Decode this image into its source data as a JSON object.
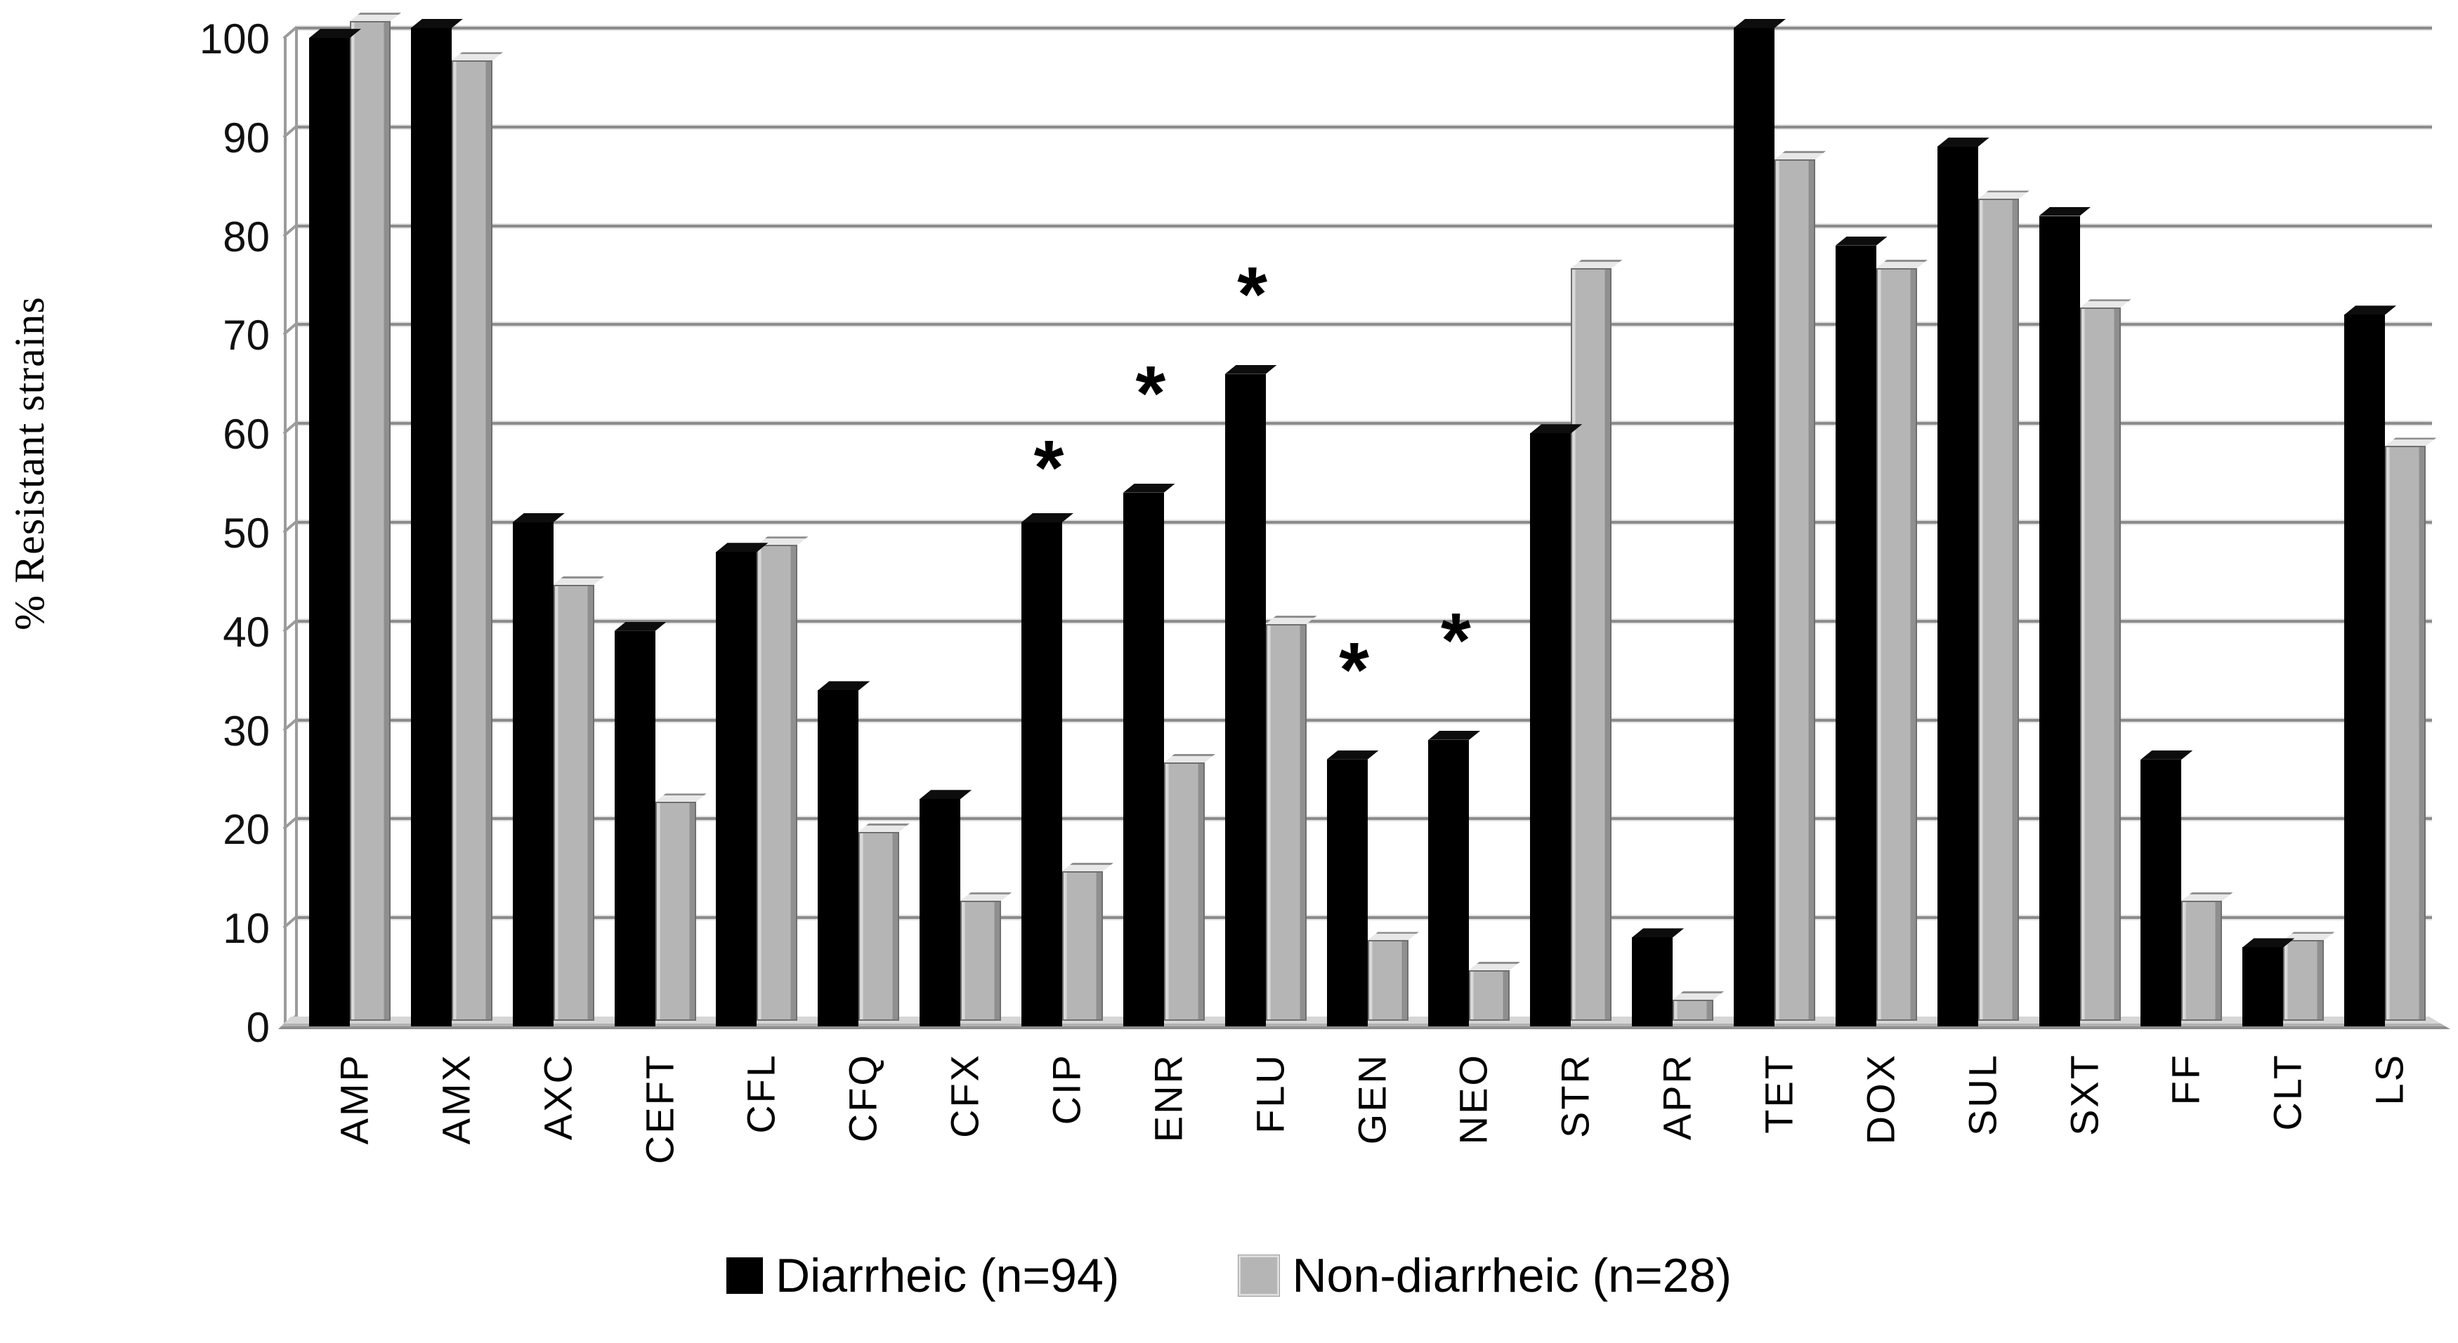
{
  "chart_data": {
    "type": "bar",
    "title": "",
    "xlabel": "",
    "ylabel": "% Resistant strains",
    "ylim": [
      0,
      100
    ],
    "yticks": [
      100,
      90,
      80,
      70,
      60,
      50,
      40,
      30,
      20,
      10,
      0
    ],
    "grid": true,
    "legend_position": "bottom",
    "categories": [
      "AMP",
      "AMX",
      "AXC",
      "CEFT",
      "CFL",
      "CFQ",
      "CFX",
      "CIP",
      "ENR",
      "FLU",
      "GEN",
      "NEO",
      "STR",
      "APR",
      "TET",
      "DOX",
      "SUL",
      "SXT",
      "FF",
      "CLT",
      "LS"
    ],
    "series": [
      {
        "name": "Diarrheic (n=94)",
        "color": "#000000",
        "values": [
          99,
          100,
          50,
          39,
          47,
          33,
          22,
          50,
          53,
          65,
          26,
          28,
          59,
          8,
          100,
          78,
          88,
          81,
          26,
          7,
          71
        ]
      },
      {
        "name": "Non-diarrheic (n=28)",
        "color": "#b5b5b5",
        "values": [
          100,
          96,
          43,
          21,
          47,
          18,
          11,
          14,
          25,
          39,
          7,
          4,
          75,
          1,
          86,
          75,
          82,
          71,
          11,
          7,
          57
        ]
      }
    ],
    "annotations": {
      "significance_symbol": "*",
      "markers": [
        {
          "category": "CIP",
          "symbol": "*",
          "level": 56
        },
        {
          "category": "ENR",
          "symbol": "*",
          "level": 63.5
        },
        {
          "category": "FLU",
          "symbol": "*",
          "level": 73.5
        },
        {
          "category": "GEN",
          "symbol": "*",
          "level": 35.5
        },
        {
          "category": "NEO",
          "symbol": "*",
          "level": 38.5
        }
      ]
    }
  },
  "colors": {
    "diarrheic_bar": "#000000",
    "non_diarrheic_bar": "#b5b5b5",
    "gridline": "#8c8c8c",
    "background": "#ffffff"
  }
}
